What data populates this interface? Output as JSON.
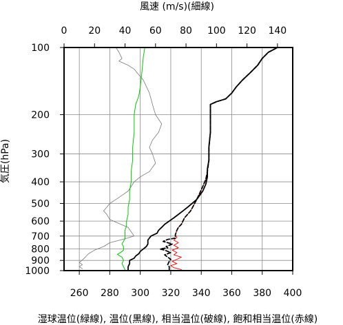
{
  "chart_data": {
    "type": "line",
    "title": "",
    "xlabel_top": "風速 (m/s)(細線)",
    "xlabel_bottom": "湿球温位(緑線), 温位(黒線), 相当温位(破線), 飽和相当温位(赤線)",
    "ylabel": "気圧(hPa)",
    "x_bottom": {
      "lim": [
        250,
        400
      ],
      "ticks": [
        "260",
        "280",
        "300",
        "320",
        "340",
        "360",
        "380",
        "400"
      ],
      "tick_values": [
        260,
        280,
        300,
        320,
        340,
        360,
        380,
        400
      ]
    },
    "x_top": {
      "lim": [
        0,
        150
      ],
      "ticks": [
        "0",
        "20",
        "40",
        "60",
        "80",
        "100",
        "120",
        "140"
      ],
      "tick_values": [
        0,
        20,
        40,
        60,
        80,
        100,
        120,
        140
      ]
    },
    "y": {
      "scale": "log",
      "lim": [
        1000,
        100
      ],
      "ticks": [
        "100",
        "200",
        "300",
        "400",
        "500",
        "600",
        "700",
        "800",
        "900",
        "1000"
      ],
      "tick_values": [
        100,
        200,
        300,
        400,
        500,
        600,
        700,
        800,
        900,
        1000
      ]
    },
    "grid": true,
    "series": [
      {
        "key": "wind",
        "axis": "top",
        "color": "#777777",
        "dash": "",
        "width": 0.8,
        "points": [
          [
            12,
            980
          ],
          [
            10,
            960
          ],
          [
            12,
            940
          ],
          [
            10,
            920
          ],
          [
            12,
            895
          ],
          [
            14,
            870
          ],
          [
            16,
            840
          ],
          [
            20,
            810
          ],
          [
            26,
            780
          ],
          [
            30,
            750
          ],
          [
            40,
            720
          ],
          [
            46,
            700
          ],
          [
            44,
            670
          ],
          [
            42,
            640
          ],
          [
            36,
            615
          ],
          [
            30,
            590
          ],
          [
            28,
            560
          ],
          [
            26,
            540
          ],
          [
            28,
            520
          ],
          [
            30,
            500
          ],
          [
            34,
            480
          ],
          [
            38,
            460
          ],
          [
            42,
            440
          ],
          [
            44,
            420
          ],
          [
            46,
            400
          ],
          [
            50,
            380
          ],
          [
            56,
            360
          ],
          [
            60,
            330
          ],
          [
            58,
            300
          ],
          [
            56,
            280
          ],
          [
            58,
            260
          ],
          [
            62,
            240
          ],
          [
            64,
            220
          ],
          [
            60,
            200
          ],
          [
            58,
            180
          ],
          [
            56,
            160
          ],
          [
            52,
            140
          ],
          [
            48,
            130
          ],
          [
            46,
            125
          ],
          [
            42,
            120
          ],
          [
            36,
            115
          ],
          [
            38,
            112
          ],
          [
            36,
            105
          ],
          [
            34,
            100
          ]
        ]
      },
      {
        "key": "wet_bulb",
        "axis": "bottom",
        "color": "#00cc00",
        "dash": "",
        "width": 1,
        "points": [
          [
            290,
            990
          ],
          [
            289,
            960
          ],
          [
            288,
            930
          ],
          [
            289,
            900
          ],
          [
            288,
            870
          ],
          [
            286,
            855
          ],
          [
            285,
            845
          ],
          [
            287,
            830
          ],
          [
            289,
            810
          ],
          [
            289,
            780
          ],
          [
            288,
            760
          ],
          [
            290,
            720
          ],
          [
            290,
            690
          ],
          [
            290,
            660
          ],
          [
            291,
            630
          ],
          [
            291,
            600
          ],
          [
            292,
            560
          ],
          [
            292,
            520
          ],
          [
            293,
            480
          ],
          [
            293,
            440
          ],
          [
            294,
            400
          ],
          [
            294,
            360
          ],
          [
            295,
            320
          ],
          [
            295,
            280
          ],
          [
            296,
            240
          ],
          [
            296,
            200
          ],
          [
            297,
            180
          ],
          [
            299,
            165
          ],
          [
            300,
            150
          ],
          [
            301,
            130
          ],
          [
            302,
            110
          ],
          [
            303,
            100
          ]
        ]
      },
      {
        "key": "theta",
        "axis": "bottom",
        "color": "#000000",
        "dash": "",
        "width": 1.8,
        "points": [
          [
            292,
            995
          ],
          [
            292,
            960
          ],
          [
            293,
            930
          ],
          [
            293,
            900
          ],
          [
            296,
            880
          ],
          [
            297,
            860
          ],
          [
            299,
            840
          ],
          [
            300,
            820
          ],
          [
            302,
            800
          ],
          [
            304,
            780
          ],
          [
            305,
            760
          ],
          [
            305,
            730
          ],
          [
            307,
            700
          ],
          [
            311,
            680
          ],
          [
            312,
            660
          ],
          [
            314,
            640
          ],
          [
            316,
            620
          ],
          [
            319,
            600
          ],
          [
            322,
            580
          ],
          [
            325,
            560
          ],
          [
            328,
            540
          ],
          [
            331,
            520
          ],
          [
            334,
            500
          ],
          [
            337,
            480
          ],
          [
            339,
            460
          ],
          [
            341,
            440
          ],
          [
            343,
            410
          ],
          [
            344,
            380
          ],
          [
            344,
            350
          ],
          [
            345,
            320
          ],
          [
            345,
            280
          ],
          [
            346,
            240
          ],
          [
            346,
            200
          ],
          [
            346,
            180
          ],
          [
            350,
            175
          ],
          [
            356,
            170
          ],
          [
            360,
            160
          ],
          [
            363,
            150
          ],
          [
            367,
            140
          ],
          [
            372,
            130
          ],
          [
            377,
            120
          ],
          [
            380,
            112
          ],
          [
            384,
            105
          ],
          [
            390,
            100
          ]
        ]
      },
      {
        "key": "theta_e",
        "axis": "bottom",
        "color": "#000000",
        "dash": "5,3",
        "width": 1.8,
        "points": [
          [
            319,
            990
          ],
          [
            319,
            960
          ],
          [
            318,
            940
          ],
          [
            319,
            910
          ],
          [
            320,
            890
          ],
          [
            318,
            870
          ],
          [
            316,
            850
          ],
          [
            320,
            830
          ],
          [
            316,
            810
          ],
          [
            313,
            800
          ],
          [
            318,
            790
          ],
          [
            317,
            780
          ],
          [
            321,
            760
          ],
          [
            315,
            740
          ],
          [
            318,
            725
          ],
          [
            323,
            715
          ],
          [
            323,
            690
          ],
          [
            324,
            660
          ],
          [
            325,
            640
          ],
          [
            327,
            620
          ],
          [
            328,
            600
          ],
          [
            329,
            580
          ],
          [
            331,
            560
          ],
          [
            333,
            540
          ],
          [
            335,
            510
          ],
          [
            337,
            480
          ],
          [
            339,
            450
          ],
          [
            341,
            420
          ],
          [
            343,
            390
          ],
          [
            344,
            360
          ],
          [
            345,
            320
          ],
          [
            345,
            280
          ],
          [
            346,
            240
          ],
          [
            346,
            200
          ],
          [
            346,
            180
          ],
          [
            350,
            175
          ],
          [
            356,
            170
          ],
          [
            360,
            160
          ],
          [
            363,
            150
          ],
          [
            367,
            140
          ],
          [
            372,
            130
          ],
          [
            377,
            120
          ],
          [
            380,
            112
          ],
          [
            384,
            105
          ],
          [
            390,
            100
          ]
        ]
      },
      {
        "key": "theta_es",
        "axis": "bottom",
        "color": "#ee0000",
        "dash": "",
        "width": 0.9,
        "points": [
          [
            327,
            990
          ],
          [
            322,
            970
          ],
          [
            320,
            950
          ],
          [
            324,
            930
          ],
          [
            321,
            910
          ],
          [
            324,
            890
          ],
          [
            327,
            870
          ],
          [
            322,
            850
          ],
          [
            324,
            830
          ],
          [
            321,
            810
          ],
          [
            325,
            790
          ],
          [
            322,
            770
          ],
          [
            325,
            750
          ],
          [
            322,
            730
          ],
          [
            324,
            710
          ],
          [
            323,
            690
          ],
          [
            324,
            660
          ],
          [
            325,
            640
          ],
          [
            327,
            620
          ],
          [
            328,
            600
          ],
          [
            329,
            580
          ],
          [
            331,
            560
          ],
          [
            333,
            540
          ],
          [
            335,
            510
          ],
          [
            337,
            480
          ],
          [
            339,
            450
          ],
          [
            341,
            420
          ],
          [
            343,
            390
          ],
          [
            344,
            360
          ],
          [
            345,
            320
          ],
          [
            345,
            280
          ],
          [
            346,
            240
          ],
          [
            346,
            200
          ],
          [
            346,
            180
          ],
          [
            350,
            175
          ],
          [
            356,
            170
          ],
          [
            360,
            160
          ],
          [
            363,
            150
          ],
          [
            367,
            140
          ],
          [
            372,
            130
          ],
          [
            377,
            120
          ],
          [
            380,
            112
          ],
          [
            384,
            105
          ],
          [
            390,
            100
          ]
        ]
      }
    ]
  }
}
